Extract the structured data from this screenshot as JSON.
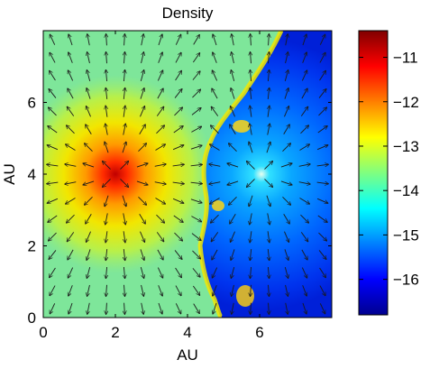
{
  "chart_data": {
    "type": "heatmap",
    "title": "Density",
    "xlabel": "AU",
    "ylabel": "AU",
    "xlim": [
      0,
      8
    ],
    "ylim": [
      0,
      8
    ],
    "x_ticks": [
      0,
      2,
      4,
      6
    ],
    "y_ticks": [
      0,
      2,
      4,
      6
    ],
    "colorbar": {
      "range": [
        -16.8,
        -10.4
      ],
      "ticks": [
        -11,
        -12,
        -13,
        -14,
        -15,
        -16
      ],
      "colormap": "jet"
    },
    "sources": [
      {
        "name": "dense-core",
        "x": 2,
        "y": 4,
        "peak_log_density": -10.8
      },
      {
        "name": "low-density-cavity",
        "x": 6,
        "y": 4,
        "center_log_density": -14.5
      }
    ],
    "background_log_density": -13.8,
    "vector_field": "velocity arrows radiating outward from (2,4) and (6,4)",
    "grid": false,
    "colors": {
      "frame": "#000000",
      "arrow": "#1a1a1a"
    }
  }
}
